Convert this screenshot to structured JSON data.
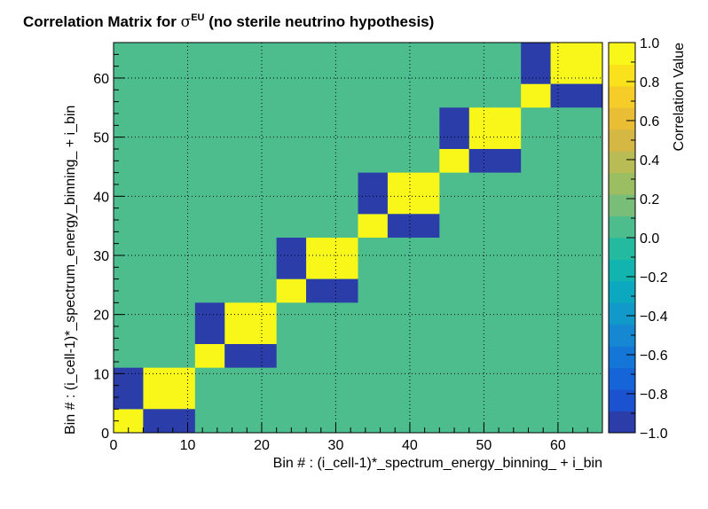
{
  "chart_data": {
    "type": "heatmap",
    "title_prefix": "Correlation Matrix for",
    "title_symbol": "σ",
    "title_superscript": "EU",
    "title_suffix": "(no sterile neutrino hypothesis)",
    "xlabel": "Bin # : (i_cell-1)*_spectrum_energy_binning_ + i_bin",
    "ylabel": "Bin # : (i_cell-1)*_spectrum_energy_binning_ + i_bin",
    "zlabel": "Correlation Value",
    "xlim": [
      0,
      66
    ],
    "ylim": [
      0,
      66
    ],
    "zlim": [
      -1,
      1
    ],
    "x_ticks": [
      "0",
      "10",
      "20",
      "30",
      "40",
      "50",
      "60"
    ],
    "x_tick_values": [
      0,
      10,
      20,
      30,
      40,
      50,
      60
    ],
    "y_ticks": [
      "0",
      "10",
      "20",
      "30",
      "40",
      "50",
      "60"
    ],
    "y_tick_values": [
      0,
      10,
      20,
      30,
      40,
      50,
      60
    ],
    "z_ticks": [
      "1.0",
      "0.8",
      "0.6",
      "0.4",
      "0.2",
      "0.0",
      "−0.2",
      "−0.4",
      "−0.6",
      "−0.8",
      "−1.0"
    ],
    "z_tick_values": [
      1,
      0.8,
      0.6,
      0.4,
      0.2,
      0,
      -0.2,
      -0.4,
      -0.6,
      -0.8,
      -1
    ],
    "grid": true,
    "background_value": 0,
    "blocks": [
      {
        "x": [
          0,
          4
        ],
        "y": [
          0,
          4
        ],
        "value": 1
      },
      {
        "x": [
          4,
          11
        ],
        "y": [
          4,
          11
        ],
        "value": 1
      },
      {
        "x": [
          0,
          4
        ],
        "y": [
          4,
          11
        ],
        "value": -1
      },
      {
        "x": [
          4,
          11
        ],
        "y": [
          0,
          4
        ],
        "value": -1
      },
      {
        "x": [
          11,
          15
        ],
        "y": [
          11,
          15
        ],
        "value": 1
      },
      {
        "x": [
          15,
          22
        ],
        "y": [
          15,
          22
        ],
        "value": 1
      },
      {
        "x": [
          11,
          15
        ],
        "y": [
          15,
          22
        ],
        "value": -1
      },
      {
        "x": [
          15,
          22
        ],
        "y": [
          11,
          15
        ],
        "value": -1
      },
      {
        "x": [
          22,
          26
        ],
        "y": [
          22,
          26
        ],
        "value": 1
      },
      {
        "x": [
          26,
          33
        ],
        "y": [
          26,
          33
        ],
        "value": 1
      },
      {
        "x": [
          22,
          26
        ],
        "y": [
          26,
          33
        ],
        "value": -1
      },
      {
        "x": [
          26,
          33
        ],
        "y": [
          22,
          26
        ],
        "value": -1
      },
      {
        "x": [
          33,
          37
        ],
        "y": [
          33,
          37
        ],
        "value": 1
      },
      {
        "x": [
          37,
          44
        ],
        "y": [
          37,
          44
        ],
        "value": 1
      },
      {
        "x": [
          33,
          37
        ],
        "y": [
          37,
          44
        ],
        "value": -1
      },
      {
        "x": [
          37,
          44
        ],
        "y": [
          33,
          37
        ],
        "value": -1
      },
      {
        "x": [
          44,
          48
        ],
        "y": [
          44,
          48
        ],
        "value": 1
      },
      {
        "x": [
          48,
          55
        ],
        "y": [
          48,
          55
        ],
        "value": 1
      },
      {
        "x": [
          44,
          48
        ],
        "y": [
          48,
          55
        ],
        "value": -1
      },
      {
        "x": [
          48,
          55
        ],
        "y": [
          44,
          48
        ],
        "value": -1
      },
      {
        "x": [
          55,
          59
        ],
        "y": [
          55,
          59
        ],
        "value": 1
      },
      {
        "x": [
          59,
          66
        ],
        "y": [
          59,
          66
        ],
        "value": 1
      },
      {
        "x": [
          55,
          59
        ],
        "y": [
          59,
          66
        ],
        "value": -1
      },
      {
        "x": [
          59,
          66
        ],
        "y": [
          55,
          59
        ],
        "value": -1
      }
    ],
    "palette": [
      "#2a3da8",
      "#1b52cf",
      "#1665d8",
      "#1476d6",
      "#1588d1",
      "#1099c9",
      "#0ca8c0",
      "#12b4b0",
      "#24ba9f",
      "#4dbd8e",
      "#78be79",
      "#9cbe63",
      "#b9bb54",
      "#d4b843",
      "#e9bd34",
      "#f5cc28",
      "#f9e21c",
      "#f9f71a"
    ]
  }
}
